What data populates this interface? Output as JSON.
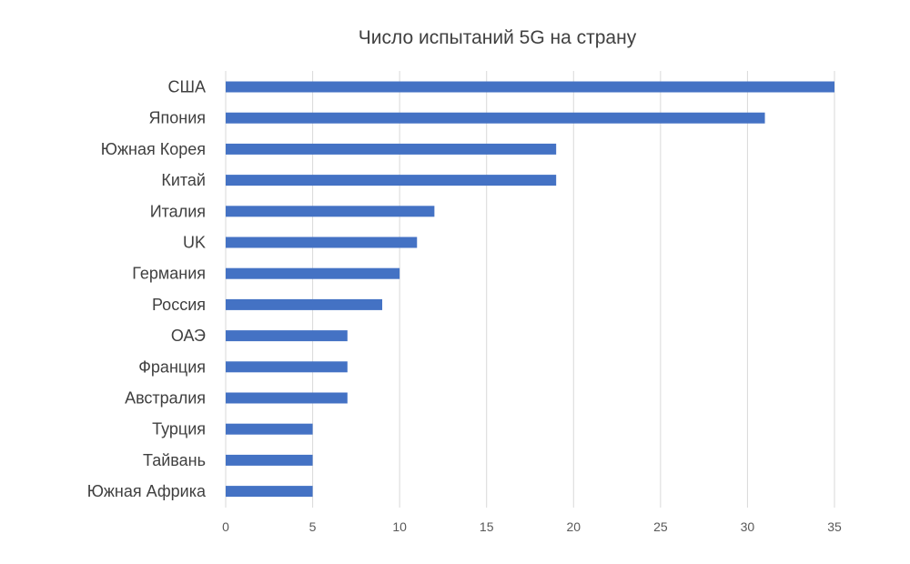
{
  "chart_data": {
    "type": "bar",
    "orientation": "horizontal",
    "title": "Число испытаний 5G на страну",
    "categories": [
      "США",
      "Япония",
      "Южная Корея",
      "Китай",
      "Италия",
      "UK",
      "Германия",
      "Россия",
      "ОАЭ",
      "Франция",
      "Австралия",
      "Турция",
      "Тайвань",
      "Южная Африка"
    ],
    "values": [
      35,
      31,
      19,
      19,
      12,
      11,
      10,
      9,
      7,
      7,
      7,
      5,
      5,
      5
    ],
    "xlim": [
      0,
      35
    ],
    "xticks": [
      "0",
      "5",
      "10",
      "15",
      "20",
      "25",
      "30",
      "35"
    ],
    "grid": "vertical",
    "legend": "none",
    "bar_color": "#4472c4",
    "grid_color": "#d9d9d9"
  }
}
